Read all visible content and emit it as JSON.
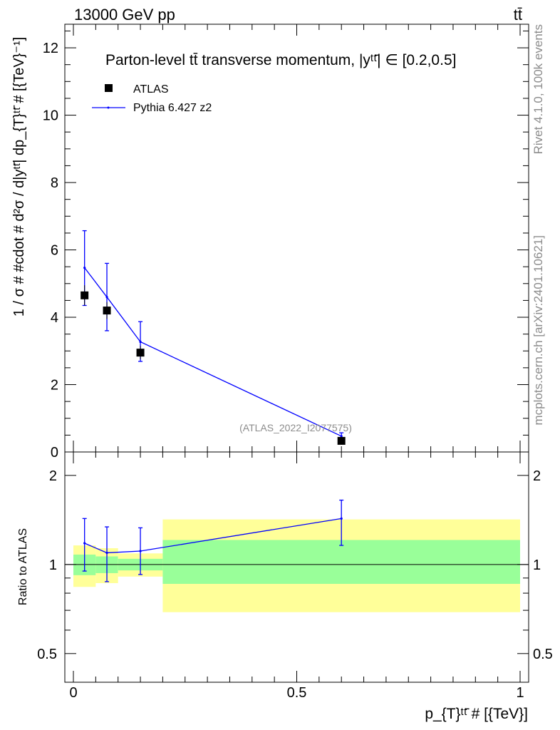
{
  "header": {
    "left": "13000 GeV pp",
    "right": "tt̄"
  },
  "side_labels": {
    "rivet": "Rivet 4.1.0,  100k events",
    "mcplots": "mcplots.cern.ch [arXiv:2401.10621]"
  },
  "chart_data": [
    {
      "panel": "main",
      "type": "scatter",
      "title": "Parton-level tt̄ transverse momentum, |yᵗᵗ̄| ∈ [0.2,0.5]",
      "ylabel": "1 / σ # #cdot # d²σ / d|yᵗᵗ̄| dp_{T}ᵗᵗ̄ # [{TeV}⁻¹]",
      "xlim": [
        0,
        1
      ],
      "ylim": [
        0,
        12.7
      ],
      "yticks": [
        "0",
        "2",
        "4",
        "6",
        "8",
        "10",
        "12"
      ],
      "analysis_tag": "(ATLAS_2022_I2077575)",
      "legend_position": "top-left",
      "series": [
        {
          "name": "ATLAS",
          "style": "markers",
          "color": "#000000",
          "x": [
            0.025,
            0.075,
            0.15,
            0.6
          ],
          "y": [
            4.65,
            4.2,
            2.95,
            0.33
          ],
          "yerr": [
            0.3,
            0.25,
            0.2,
            0.05
          ]
        },
        {
          "name": "Pythia 6.427 z2",
          "style": "line",
          "color": "#0000ff",
          "x": [
            0.025,
            0.075,
            0.15,
            0.6
          ],
          "y": [
            5.47,
            4.6,
            3.27,
            0.47
          ],
          "yerr_low": [
            1.12,
            1.0,
            0.58,
            0.1
          ],
          "yerr_high": [
            1.1,
            1.0,
            0.6,
            0.1
          ]
        }
      ]
    },
    {
      "panel": "ratio",
      "type": "line",
      "ylabel": "Ratio to ATLAS",
      "xlabel": "p_{T}ᵗᵗ̄ # [{TeV}]",
      "xlim": [
        0,
        1
      ],
      "ylim": [
        0.4,
        2.4
      ],
      "yscale": "log",
      "yticks": [
        "0.5",
        "1",
        "2"
      ],
      "xticks": [
        "0",
        "0.5",
        "1"
      ],
      "bands": {
        "bin_edges": [
          0,
          0.05,
          0.1,
          0.2,
          1.0
        ],
        "yellow_low": [
          0.84,
          0.865,
          0.91,
          0.69
        ],
        "yellow_high": [
          1.16,
          1.135,
          1.09,
          1.42
        ],
        "green_low": [
          0.92,
          0.935,
          0.955,
          0.86
        ],
        "green_high": [
          1.08,
          1.065,
          1.045,
          1.21
        ]
      },
      "series": [
        {
          "name": "Pythia 6.427 z2",
          "color": "#0000ff",
          "x": [
            0.025,
            0.075,
            0.15,
            0.6
          ],
          "y": [
            1.18,
            1.095,
            1.11,
            1.43
          ],
          "y_low": [
            0.95,
            0.875,
            0.925,
            1.16
          ],
          "y_high": [
            1.43,
            1.34,
            1.33,
            1.65
          ]
        }
      ]
    }
  ]
}
